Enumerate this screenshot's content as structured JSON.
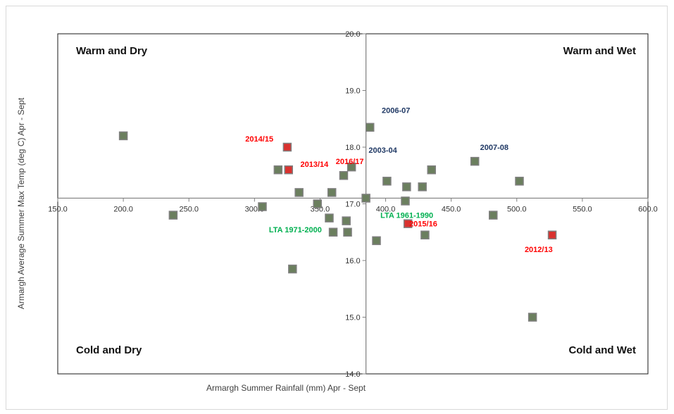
{
  "chart_data": {
    "type": "scatter",
    "title": "",
    "xlabel": "Armargh Summer Rainfall (mm) Apr - Sept",
    "ylabel": "Armargh Average Summer Max Temp (deg C) Apr - Sept",
    "xlim": [
      150,
      600
    ],
    "ylim": [
      14,
      20
    ],
    "x_ticks": [
      "150.0",
      "200.0",
      "250.0",
      "300.0",
      "350.0",
      "400.0",
      "450.0",
      "500.0",
      "550.0",
      "600.0"
    ],
    "y_ticks": [
      "14.0",
      "15.0",
      "16.0",
      "17.0",
      "18.0",
      "19.0",
      "20.0"
    ],
    "axis_cross": {
      "x": 385,
      "y": 17.1
    },
    "grid": false,
    "quadrants": {
      "top_left": "Warm and Dry",
      "top_right": "Warm and Wet",
      "bottom_left": "Cold and Dry",
      "bottom_right": "Cold and Wet"
    },
    "points": [
      {
        "x": 200,
        "y": 18.2
      },
      {
        "x": 238,
        "y": 16.8
      },
      {
        "x": 306,
        "y": 16.95
      },
      {
        "x": 318,
        "y": 17.6
      },
      {
        "x": 325,
        "y": 18.0
      },
      {
        "x": 326,
        "y": 17.6
      },
      {
        "x": 329,
        "y": 15.85
      },
      {
        "x": 334,
        "y": 17.2
      },
      {
        "x": 348,
        "y": 17.0
      },
      {
        "x": 357,
        "y": 16.75
      },
      {
        "x": 359,
        "y": 17.2
      },
      {
        "x": 360,
        "y": 16.5
      },
      {
        "x": 368,
        "y": 17.5
      },
      {
        "x": 370,
        "y": 16.7
      },
      {
        "x": 371,
        "y": 16.5
      },
      {
        "x": 374,
        "y": 17.65
      },
      {
        "x": 385,
        "y": 17.1
      },
      {
        "x": 388,
        "y": 18.35
      },
      {
        "x": 393,
        "y": 16.35
      },
      {
        "x": 401,
        "y": 17.4
      },
      {
        "x": 415,
        "y": 17.05
      },
      {
        "x": 416,
        "y": 17.3
      },
      {
        "x": 417,
        "y": 16.65
      },
      {
        "x": 428,
        "y": 17.3
      },
      {
        "x": 430,
        "y": 16.45
      },
      {
        "x": 435,
        "y": 17.6
      },
      {
        "x": 468,
        "y": 17.75
      },
      {
        "x": 482,
        "y": 16.8
      },
      {
        "x": 502,
        "y": 17.4
      },
      {
        "x": 512,
        "y": 15.0
      },
      {
        "x": 527,
        "y": 16.45
      }
    ],
    "highlight_points": [
      {
        "x": 325,
        "y": 18.0
      },
      {
        "x": 326,
        "y": 17.6
      },
      {
        "x": 417,
        "y": 16.65
      },
      {
        "x": 527,
        "y": 16.45
      }
    ],
    "annotations": [
      {
        "text": "2014/15",
        "x": 293,
        "y": 18.1,
        "color": "#ff0000"
      },
      {
        "text": "2013/14",
        "x": 335,
        "y": 17.65,
        "color": "#ff0000"
      },
      {
        "text": "2016/17",
        "x": 362,
        "y": 17.7,
        "color": "#ff0000"
      },
      {
        "text": "2015/16",
        "x": 418,
        "y": 16.6,
        "color": "#ff0000"
      },
      {
        "text": "2012/13",
        "x": 506,
        "y": 16.15,
        "color": "#ff0000"
      },
      {
        "text": "2006-07",
        "x": 397,
        "y": 18.6,
        "color": "#1f3864"
      },
      {
        "text": "2003-04",
        "x": 387,
        "y": 17.9,
        "color": "#1f3864"
      },
      {
        "text": "2007-08",
        "x": 472,
        "y": 17.95,
        "color": "#1f3864"
      },
      {
        "text": "LTA 1971-2000",
        "x": 311,
        "y": 16.5,
        "color": "#00b050"
      },
      {
        "text": "LTA 1961-1990",
        "x": 396,
        "y": 16.75,
        "color": "#00b050"
      }
    ],
    "colors": {
      "marker_fill": "#6b7f5e",
      "marker_edge": "#7f7f7f",
      "highlight_fill": "#d9322f",
      "axis": "#7f7f7f"
    }
  }
}
